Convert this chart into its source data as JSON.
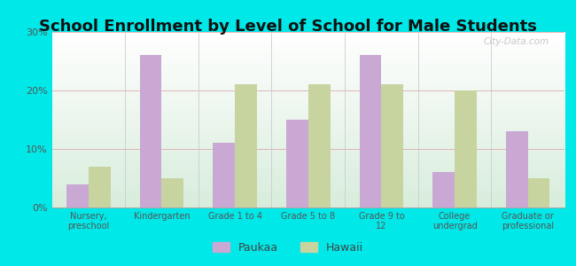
{
  "title": "School Enrollment by Level of School for Male Students",
  "categories": [
    "Nursery,\npreschool",
    "Kindergarten",
    "Grade 1 to 4",
    "Grade 5 to 8",
    "Grade 9 to\n12",
    "College\nundergrad",
    "Graduate or\nprofessional"
  ],
  "paukaa": [
    4,
    26,
    11,
    15,
    26,
    6,
    13
  ],
  "hawaii": [
    7,
    5,
    21,
    21,
    21,
    20,
    5
  ],
  "paukaa_color": "#c9a8d4",
  "hawaii_color": "#c8d4a0",
  "background_color": "#00e8e8",
  "plot_bg_top": "#ffffff",
  "plot_bg_bottom": "#d8eddc",
  "ylim": [
    0,
    30
  ],
  "yticks": [
    0,
    10,
    20,
    30
  ],
  "ytick_labels": [
    "0%",
    "10%",
    "20%",
    "30%"
  ],
  "legend_labels": [
    "Paukaa",
    "Hawaii"
  ],
  "title_fontsize": 13,
  "bar_width": 0.3
}
